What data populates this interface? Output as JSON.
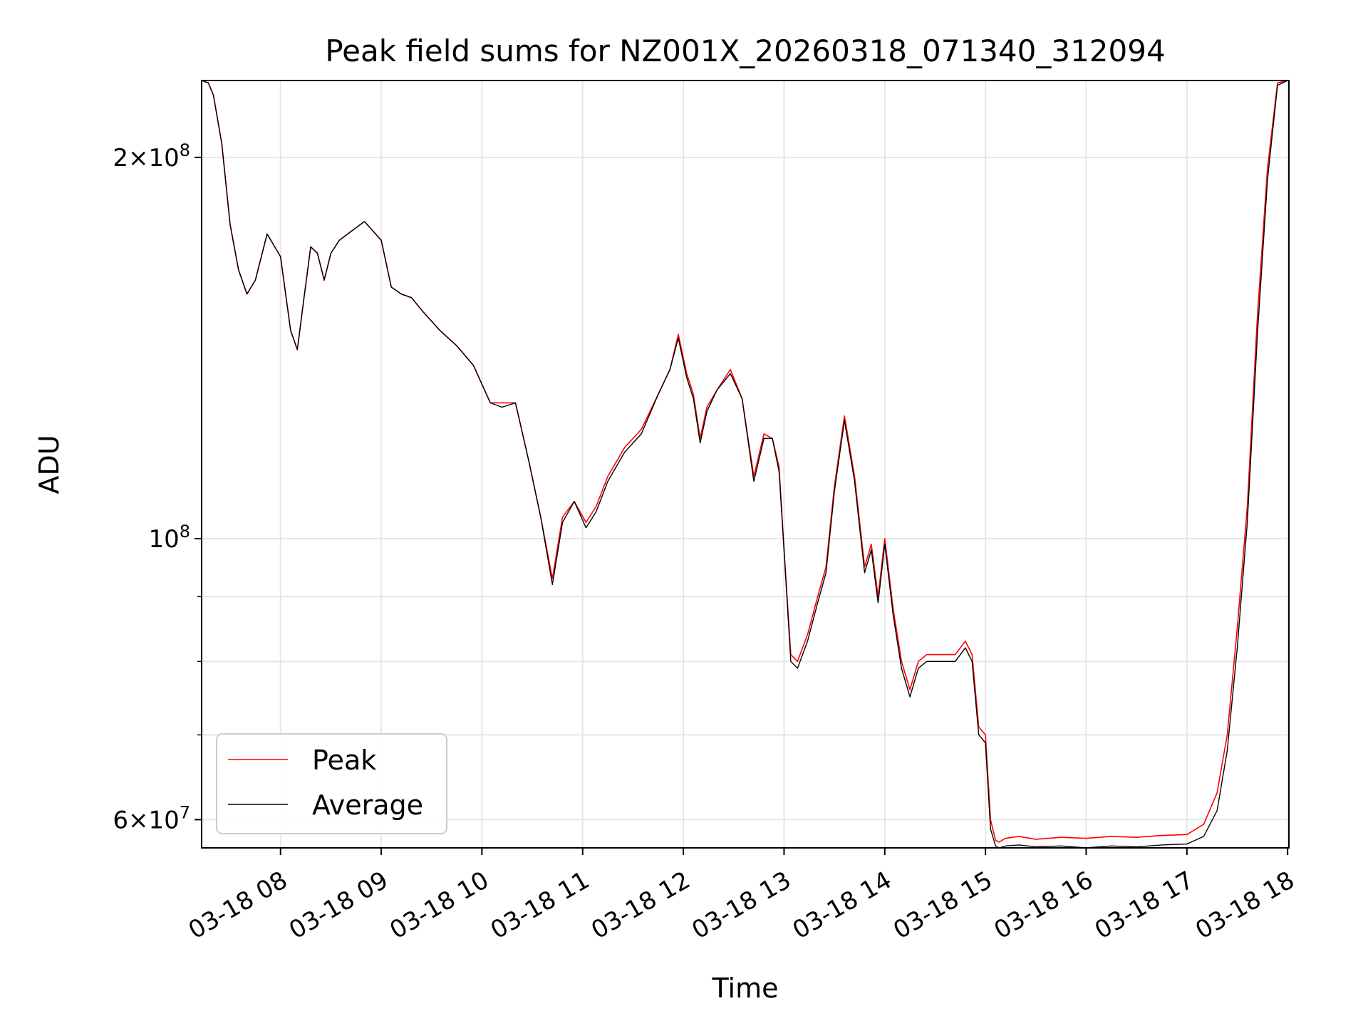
{
  "chart_data": {
    "type": "line",
    "title": "Peak field sums for NZ001X_20260318_071340_312094",
    "xlabel": "Time",
    "ylabel": "ADU",
    "yscale": "log",
    "grid": true,
    "legend_position": "lower-left",
    "x_unit": "hours",
    "xlim": [
      "03-18 07:13",
      "03-18 18:00"
    ],
    "ylim": [
      57000000,
      230000000
    ],
    "x_ticks": [
      "03-18 08",
      "03-18 09",
      "03-18 10",
      "03-18 11",
      "03-18 12",
      "03-18 13",
      "03-18 14",
      "03-18 15",
      "03-18 16",
      "03-18 17",
      "03-18 18"
    ],
    "y_ticks": [
      {
        "value": 200000000,
        "mant": "2",
        "exp": "8"
      },
      {
        "value": 100000000,
        "mant": "",
        "exp": "8"
      },
      {
        "value": 60000000,
        "mant": "6",
        "exp": "7"
      }
    ],
    "y_minor_ticks": [
      70000000,
      80000000,
      90000000
    ],
    "series": [
      {
        "name": "Peak",
        "color": "#ff0000",
        "x": [
          "03-18 07:13",
          "03-18 07:17",
          "03-18 07:20",
          "03-18 07:25",
          "03-18 07:30",
          "03-18 07:35",
          "03-18 07:40",
          "03-18 07:45",
          "03-18 07:52",
          "03-18 08:00",
          "03-18 08:06",
          "03-18 08:10",
          "03-18 08:14",
          "03-18 08:18",
          "03-18 08:22",
          "03-18 08:26",
          "03-18 08:30",
          "03-18 08:35",
          "03-18 08:40",
          "03-18 08:50",
          "03-18 09:00",
          "03-18 09:06",
          "03-18 09:12",
          "03-18 09:18",
          "03-18 09:25",
          "03-18 09:35",
          "03-18 09:45",
          "03-18 09:55",
          "03-18 10:05",
          "03-18 10:12",
          "03-18 10:20",
          "03-18 10:28",
          "03-18 10:35",
          "03-18 10:42",
          "03-18 10:48",
          "03-18 10:55",
          "03-18 11:02",
          "03-18 11:08",
          "03-18 11:15",
          "03-18 11:25",
          "03-18 11:35",
          "03-18 11:45",
          "03-18 11:52",
          "03-18 11:57",
          "03-18 12:02",
          "03-18 12:06",
          "03-18 12:10",
          "03-18 12:14",
          "03-18 12:20",
          "03-18 12:28",
          "03-18 12:35",
          "03-18 12:42",
          "03-18 12:48",
          "03-18 12:53",
          "03-18 12:57",
          "03-18 13:00",
          "03-18 13:04",
          "03-18 13:08",
          "03-18 13:14",
          "03-18 13:20",
          "03-18 13:25",
          "03-18 13:30",
          "03-18 13:36",
          "03-18 13:42",
          "03-18 13:48",
          "03-18 13:52",
          "03-18 13:56",
          "03-18 14:00",
          "03-18 14:05",
          "03-18 14:10",
          "03-18 14:15",
          "03-18 14:20",
          "03-18 14:25",
          "03-18 14:30",
          "03-18 14:36",
          "03-18 14:42",
          "03-18 14:48",
          "03-18 14:52",
          "03-18 14:56",
          "03-18 15:00",
          "03-18 15:03",
          "03-18 15:06",
          "03-18 15:08",
          "03-18 15:12",
          "03-18 15:20",
          "03-18 15:30",
          "03-18 15:45",
          "03-18 16:00",
          "03-18 16:15",
          "03-18 16:30",
          "03-18 16:45",
          "03-18 17:00",
          "03-18 17:10",
          "03-18 17:18",
          "03-18 17:24",
          "03-18 17:30",
          "03-18 17:36",
          "03-18 17:42",
          "03-18 17:48",
          "03-18 17:54",
          "03-18 18:00"
        ],
        "values": [
          230000000,
          229000000,
          224000000,
          205000000,
          177000000,
          163000000,
          156000000,
          160000000,
          174000000,
          167000000,
          146000000,
          141000000,
          155000000,
          170000000,
          168000000,
          160000000,
          168000000,
          172000000,
          174000000,
          178000000,
          172000000,
          158000000,
          156000000,
          155000000,
          151000000,
          146000000,
          142000000,
          137000000,
          128000000,
          128000000,
          128000000,
          115000000,
          104000000,
          93000000,
          104000000,
          107000000,
          103000000,
          106000000,
          112000000,
          118000000,
          122000000,
          130000000,
          136000000,
          145000000,
          135000000,
          130000000,
          120000000,
          127000000,
          131000000,
          136000000,
          129000000,
          112000000,
          121000000,
          120000000,
          114000000,
          98000000,
          81000000,
          80000000,
          84000000,
          90000000,
          95000000,
          110000000,
          125000000,
          112000000,
          95000000,
          99000000,
          90000000,
          100000000,
          88000000,
          80000000,
          76000000,
          80000000,
          81000000,
          81000000,
          81000000,
          81000000,
          83000000,
          81000000,
          71000000,
          70000000,
          60000000,
          57800000,
          57600000,
          58000000,
          58200000,
          57900000,
          58100000,
          58000000,
          58200000,
          58100000,
          58300000,
          58400000,
          59500000,
          63000000,
          70000000,
          85000000,
          106000000,
          150000000,
          196000000,
          229000000,
          232000000
        ]
      },
      {
        "name": "Average",
        "color": "#000000",
        "x": [
          "03-18 07:13",
          "03-18 07:17",
          "03-18 07:20",
          "03-18 07:25",
          "03-18 07:30",
          "03-18 07:35",
          "03-18 07:40",
          "03-18 07:45",
          "03-18 07:52",
          "03-18 08:00",
          "03-18 08:06",
          "03-18 08:10",
          "03-18 08:14",
          "03-18 08:18",
          "03-18 08:22",
          "03-18 08:26",
          "03-18 08:30",
          "03-18 08:35",
          "03-18 08:40",
          "03-18 08:50",
          "03-18 09:00",
          "03-18 09:06",
          "03-18 09:12",
          "03-18 09:18",
          "03-18 09:25",
          "03-18 09:35",
          "03-18 09:45",
          "03-18 09:55",
          "03-18 10:05",
          "03-18 10:12",
          "03-18 10:20",
          "03-18 10:28",
          "03-18 10:35",
          "03-18 10:42",
          "03-18 10:48",
          "03-18 10:55",
          "03-18 11:02",
          "03-18 11:08",
          "03-18 11:15",
          "03-18 11:25",
          "03-18 11:35",
          "03-18 11:45",
          "03-18 11:52",
          "03-18 11:57",
          "03-18 12:02",
          "03-18 12:06",
          "03-18 12:10",
          "03-18 12:14",
          "03-18 12:20",
          "03-18 12:28",
          "03-18 12:35",
          "03-18 12:42",
          "03-18 12:48",
          "03-18 12:53",
          "03-18 12:57",
          "03-18 13:00",
          "03-18 13:04",
          "03-18 13:08",
          "03-18 13:14",
          "03-18 13:20",
          "03-18 13:25",
          "03-18 13:30",
          "03-18 13:36",
          "03-18 13:42",
          "03-18 13:48",
          "03-18 13:52",
          "03-18 13:56",
          "03-18 14:00",
          "03-18 14:05",
          "03-18 14:10",
          "03-18 14:15",
          "03-18 14:20",
          "03-18 14:25",
          "03-18 14:30",
          "03-18 14:36",
          "03-18 14:42",
          "03-18 14:48",
          "03-18 14:52",
          "03-18 14:56",
          "03-18 15:00",
          "03-18 15:03",
          "03-18 15:06",
          "03-18 15:08",
          "03-18 15:12",
          "03-18 15:20",
          "03-18 15:30",
          "03-18 15:45",
          "03-18 16:00",
          "03-18 16:15",
          "03-18 16:30",
          "03-18 16:45",
          "03-18 17:00",
          "03-18 17:10",
          "03-18 17:18",
          "03-18 17:24",
          "03-18 17:30",
          "03-18 17:36",
          "03-18 17:42",
          "03-18 17:48",
          "03-18 17:54",
          "03-18 18:00"
        ],
        "values": [
          230000000,
          229000000,
          224000000,
          205000000,
          177000000,
          163000000,
          156000000,
          160000000,
          174000000,
          167000000,
          146000000,
          141000000,
          155000000,
          170000000,
          168000000,
          160000000,
          168000000,
          172000000,
          174000000,
          178000000,
          172000000,
          158000000,
          156000000,
          155000000,
          151000000,
          146000000,
          142000000,
          137000000,
          128000000,
          127000000,
          128000000,
          115000000,
          104000000,
          92000000,
          103000000,
          107000000,
          102000000,
          105000000,
          111000000,
          117000000,
          121000000,
          130000000,
          136000000,
          144000000,
          134000000,
          129000000,
          119000000,
          126000000,
          131000000,
          135000000,
          129000000,
          111000000,
          120000000,
          120000000,
          113000000,
          98000000,
          80000000,
          79000000,
          83000000,
          89000000,
          94000000,
          109000000,
          124000000,
          111000000,
          94000000,
          98000000,
          89000000,
          99000000,
          87000000,
          79000000,
          75000000,
          79000000,
          80000000,
          80000000,
          80000000,
          80000000,
          82000000,
          80000000,
          70000000,
          69000000,
          59000000,
          57200000,
          57000000,
          57200000,
          57300000,
          57100000,
          57200000,
          57000000,
          57200000,
          57100000,
          57300000,
          57400000,
          58200000,
          61000000,
          68000000,
          82000000,
          103000000,
          145000000,
          192000000,
          228000000,
          232000000
        ]
      }
    ]
  }
}
